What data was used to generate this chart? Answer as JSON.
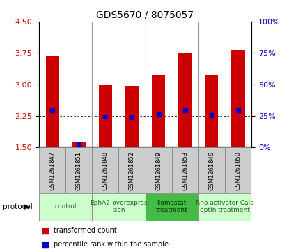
{
  "title": "GDS5670 / 8075057",
  "samples": [
    "GSM1261847",
    "GSM1261851",
    "GSM1261848",
    "GSM1261852",
    "GSM1261849",
    "GSM1261853",
    "GSM1261846",
    "GSM1261850"
  ],
  "transformed_count": [
    3.68,
    1.62,
    2.97,
    2.96,
    3.22,
    3.76,
    3.22,
    3.82
  ],
  "percentile_rank": [
    2.38,
    1.57,
    2.23,
    2.22,
    2.28,
    2.38,
    2.27,
    2.38
  ],
  "ymin": 1.5,
  "ymax": 4.5,
  "yticks": [
    1.5,
    2.25,
    3.0,
    3.75,
    4.5
  ],
  "y2ticks_pct": [
    0,
    25,
    50,
    75,
    100
  ],
  "bar_color": "#cc0000",
  "dot_color": "#0000cc",
  "bar_bottom": 1.5,
  "protocols": [
    {
      "label": "control",
      "span": [
        0,
        1
      ],
      "color": "#ccffcc",
      "text_color": "#226622"
    },
    {
      "label": "EphA2-overexpres\nsion",
      "span": [
        2,
        3
      ],
      "color": "#ccffcc",
      "text_color": "#226622"
    },
    {
      "label": "Ilomastat\ntreatment",
      "span": [
        4,
        5
      ],
      "color": "#44bb44",
      "text_color": "#003300"
    },
    {
      "label": "Rho activator Calp\neptin treatment",
      "span": [
        6,
        7
      ],
      "color": "#ccffcc",
      "text_color": "#226622"
    }
  ],
  "group_separators": [
    1.5,
    3.5,
    5.5
  ],
  "protocol_label": "protocol",
  "legend_bar": "transformed count",
  "legend_dot": "percentile rank within the sample",
  "bar_width": 0.5,
  "label_area_color": "#cccccc",
  "background_color": "#ffffff"
}
